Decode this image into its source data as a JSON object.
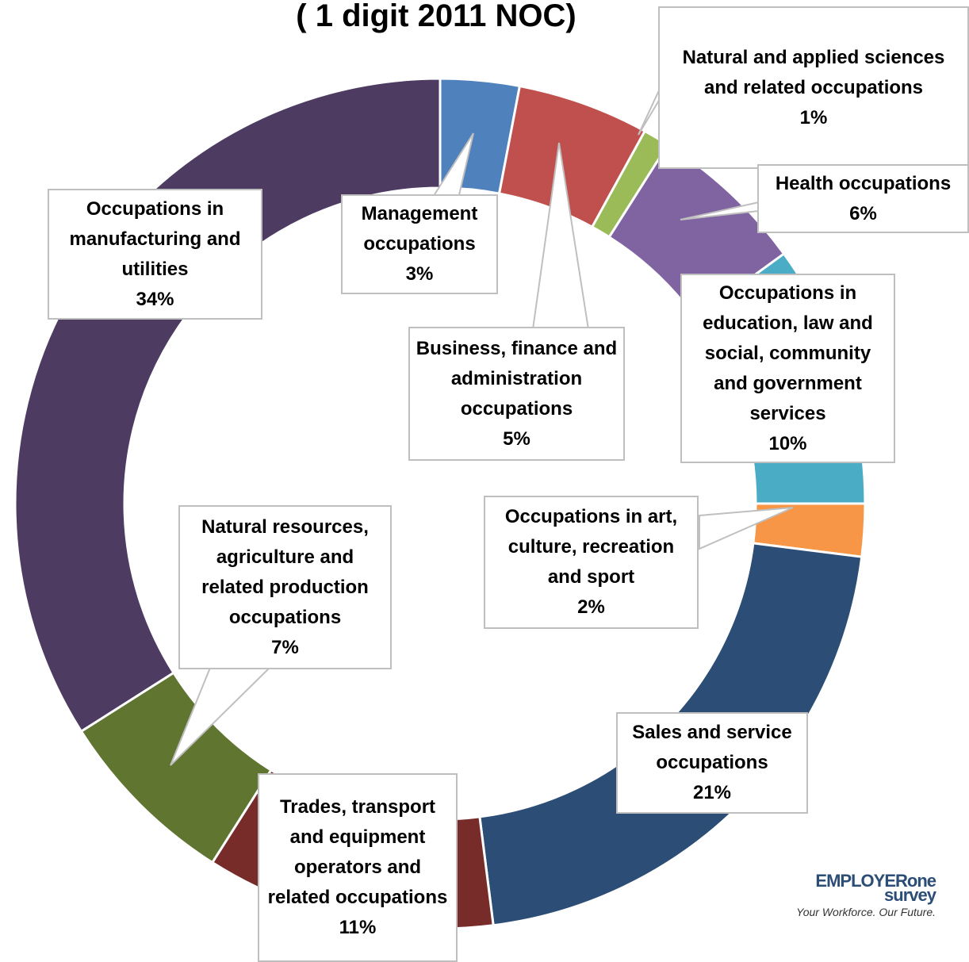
{
  "chart_data": {
    "type": "donut",
    "title": "( 1 digit 2011 NOC)",
    "categories": [
      "Management occupations",
      "Business, finance and administration occupations",
      "Natural and applied sciences and related occupations",
      "Health occupations",
      "Occupations in education, law and social, community and government services",
      "Occupations in art, culture, recreation and sport",
      "Sales and service occupations",
      "Trades, transport and equipment operators and related occupations",
      "Natural resources, agriculture and related production occupations",
      "Occupations in manufacturing and utilities"
    ],
    "values": [
      3,
      5,
      1,
      6,
      10,
      2,
      21,
      11,
      7,
      34
    ],
    "value_labels": [
      "3%",
      "5%",
      "1%",
      "6%",
      "10%",
      "2%",
      "21%",
      "11%",
      "7%",
      "34%"
    ],
    "colors": [
      "#4f81bd",
      "#c0504d",
      "#9bbb59",
      "#8064a2",
      "#4bacc6",
      "#f79646",
      "#2c4d75",
      "#772c2a",
      "#5f7530",
      "#4d3b62"
    ],
    "logo": {
      "brand": "EMPLOYERone",
      "sub": "survey",
      "tagline": "Your Workforce.  Our Future."
    }
  }
}
